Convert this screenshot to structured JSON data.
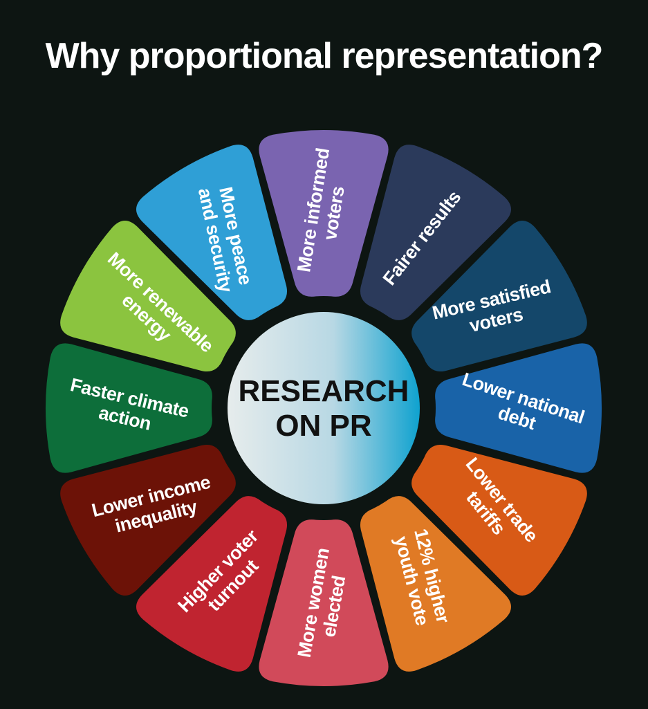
{
  "title": "Why proportional representation?",
  "center": {
    "lines": [
      "RESEARCH",
      "ON PR"
    ]
  },
  "segments": [
    {
      "lines": [
        "More informed",
        "voters"
      ],
      "color": "#7a64b0",
      "rot": -81
    },
    {
      "lines": [
        "Fairer results"
      ],
      "color": "#2b3a5b",
      "rot": -52
    },
    {
      "lines": [
        "More satisfied",
        "voters"
      ],
      "color": "#14476a",
      "rot": -13
    },
    {
      "lines": [
        "Lower national",
        "debt"
      ],
      "color": "#1963a8",
      "rot": 18
    },
    {
      "lines": [
        "Lower trade",
        "tariffs"
      ],
      "color": "#d85a16",
      "rot": 51
    },
    {
      "lines": [
        "12% higher",
        "youth vote"
      ],
      "color": "#e07a25",
      "rot": 76
    },
    {
      "lines": [
        "More women",
        "elected"
      ],
      "color": "#d14a5a",
      "rot": -80
    },
    {
      "lines": [
        "Higher voter",
        "turnout"
      ],
      "color": "#c02430",
      "rot": -46
    },
    {
      "lines": [
        "Lower income",
        "inequality"
      ],
      "color": "#6c1207",
      "rot": -14
    },
    {
      "lines": [
        "Faster climate",
        "action"
      ],
      "color": "#0d6e3a",
      "rot": 13
    },
    {
      "lines": [
        "More renewable",
        "energy"
      ],
      "color": "#8bc43f",
      "rot": 43
    },
    {
      "lines": [
        "More peace",
        "and security"
      ],
      "color": "#2f9fd6",
      "rot": 78
    }
  ]
}
